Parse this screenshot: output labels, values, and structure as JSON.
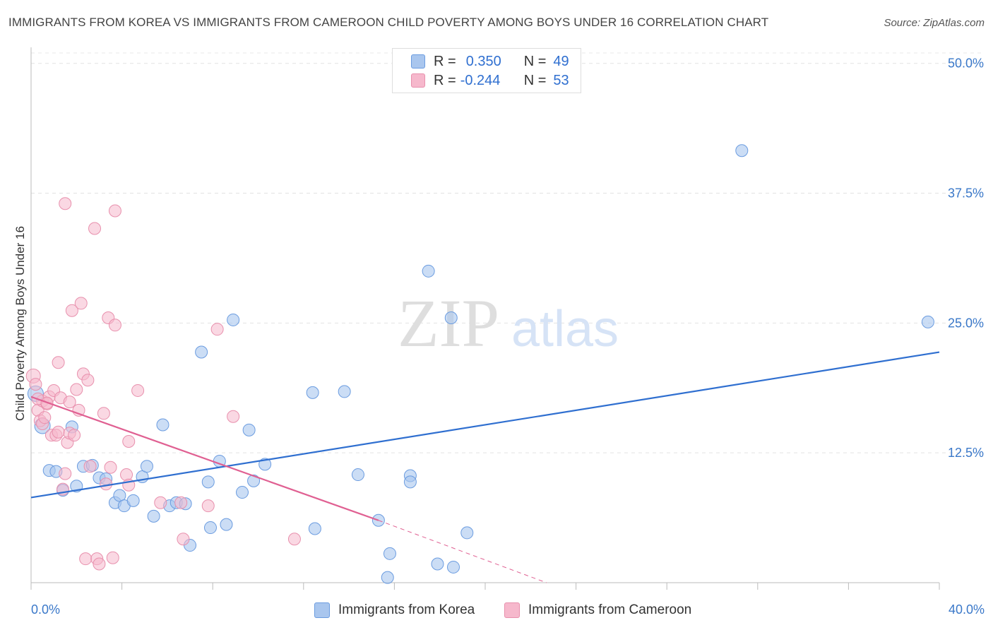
{
  "title": "IMMIGRANTS FROM KOREA VS IMMIGRANTS FROM CAMEROON CHILD POVERTY AMONG BOYS UNDER 16 CORRELATION CHART",
  "source": "Source: ZipAtlas.com",
  "watermark": {
    "zip": "ZIP",
    "atlas": "atlas"
  },
  "colors": {
    "korea_fill": "#a9c6ee",
    "korea_stroke": "#6b9ce0",
    "korea_line": "#2f6fd0",
    "cameroon_fill": "#f6b8cc",
    "cameroon_stroke": "#e890ad",
    "cameroon_line": "#e06092",
    "axis_text": "#3a78c9"
  },
  "legend": {
    "rows": [
      {
        "r_label": "R =",
        "r_value": "0.350",
        "n_label": "N =",
        "n_value": "49"
      },
      {
        "r_label": "R =",
        "r_value": "-0.244",
        "n_label": "N =",
        "n_value": "53"
      }
    ]
  },
  "bottom_legend": {
    "korea": "Immigrants from Korea",
    "cameroon": "Immigrants from Cameroon"
  },
  "chart_data": {
    "type": "scatter",
    "title": "IMMIGRANTS FROM KOREA VS IMMIGRANTS FROM CAMEROON CHILD POVERTY AMONG BOYS UNDER 16 CORRELATION CHART",
    "xlabel": "",
    "ylabel": "Child Poverty Among Boys Under 16",
    "xlim": [
      0,
      40
    ],
    "ylim": [
      0,
      51
    ],
    "x_tick_labels": [
      "0.0%",
      "40.0%"
    ],
    "y_ticks": [
      12.5,
      25.0,
      37.5,
      50.0
    ],
    "y_tick_labels": [
      "12.5%",
      "25.0%",
      "37.5%",
      "50.0%"
    ],
    "series": [
      {
        "name": "Immigrants from Korea",
        "r": 0.35,
        "n": 49,
        "trend": {
          "x": [
            0,
            40
          ],
          "y": [
            8.2,
            22.2
          ]
        },
        "points": [
          [
            0.2,
            18.2
          ],
          [
            0.5,
            15.1
          ],
          [
            0.8,
            10.8
          ],
          [
            1.1,
            10.7
          ],
          [
            1.4,
            8.9
          ],
          [
            1.8,
            15.0
          ],
          [
            2.0,
            9.3
          ],
          [
            2.3,
            11.2
          ],
          [
            2.7,
            11.3
          ],
          [
            3.0,
            10.1
          ],
          [
            3.3,
            10.0
          ],
          [
            3.7,
            7.7
          ],
          [
            3.9,
            8.4
          ],
          [
            4.1,
            7.4
          ],
          [
            4.5,
            7.9
          ],
          [
            4.9,
            10.2
          ],
          [
            5.1,
            11.2
          ],
          [
            5.4,
            6.4
          ],
          [
            5.8,
            15.2
          ],
          [
            6.1,
            7.4
          ],
          [
            6.4,
            7.7
          ],
          [
            6.8,
            7.6
          ],
          [
            7.0,
            3.6
          ],
          [
            7.5,
            22.2
          ],
          [
            7.8,
            9.7
          ],
          [
            7.9,
            5.3
          ],
          [
            8.3,
            11.7
          ],
          [
            8.6,
            5.6
          ],
          [
            8.9,
            25.3
          ],
          [
            9.3,
            8.7
          ],
          [
            9.6,
            14.7
          ],
          [
            9.8,
            9.8
          ],
          [
            10.3,
            11.4
          ],
          [
            12.4,
            18.3
          ],
          [
            12.5,
            5.2
          ],
          [
            13.8,
            18.4
          ],
          [
            14.4,
            10.4
          ],
          [
            15.3,
            6.0
          ],
          [
            15.7,
            0.5
          ],
          [
            15.8,
            2.8
          ],
          [
            16.7,
            10.3
          ],
          [
            16.7,
            9.7
          ],
          [
            17.5,
            30.0
          ],
          [
            17.9,
            1.8
          ],
          [
            18.5,
            25.5
          ],
          [
            18.6,
            1.5
          ],
          [
            19.2,
            4.8
          ],
          [
            31.3,
            41.6
          ],
          [
            39.5,
            25.1
          ]
        ]
      },
      {
        "name": "Immigrants from Cameroon",
        "r": -0.244,
        "n": 53,
        "trend": {
          "x": [
            0,
            15.3
          ],
          "y": [
            17.9,
            6.0
          ]
        },
        "trend_dashed": {
          "x": [
            15.3,
            22.7
          ],
          "y": [
            6.0,
            0.0
          ]
        },
        "points": [
          [
            0.1,
            19.9
          ],
          [
            0.2,
            19.1
          ],
          [
            0.3,
            16.6
          ],
          [
            0.4,
            15.6
          ],
          [
            0.5,
            17.5
          ],
          [
            0.5,
            15.3
          ],
          [
            0.6,
            15.9
          ],
          [
            0.7,
            17.2
          ],
          [
            0.8,
            17.9
          ],
          [
            0.9,
            14.2
          ],
          [
            1.0,
            18.5
          ],
          [
            1.1,
            14.2
          ],
          [
            1.2,
            14.5
          ],
          [
            1.2,
            21.2
          ],
          [
            1.3,
            17.8
          ],
          [
            1.4,
            9.0
          ],
          [
            1.5,
            36.5
          ],
          [
            1.5,
            10.5
          ],
          [
            1.6,
            13.5
          ],
          [
            1.7,
            17.4
          ],
          [
            1.7,
            14.4
          ],
          [
            1.8,
            26.2
          ],
          [
            1.9,
            14.2
          ],
          [
            2.0,
            18.6
          ],
          [
            2.1,
            16.6
          ],
          [
            2.2,
            26.9
          ],
          [
            2.3,
            20.1
          ],
          [
            2.4,
            2.3
          ],
          [
            2.5,
            19.5
          ],
          [
            2.6,
            11.2
          ],
          [
            2.8,
            34.1
          ],
          [
            2.9,
            2.3
          ],
          [
            3.0,
            1.8
          ],
          [
            3.2,
            16.3
          ],
          [
            3.3,
            9.5
          ],
          [
            3.4,
            25.5
          ],
          [
            3.5,
            11.1
          ],
          [
            3.6,
            2.4
          ],
          [
            3.7,
            24.8
          ],
          [
            3.7,
            35.8
          ],
          [
            4.2,
            10.4
          ],
          [
            4.3,
            13.6
          ],
          [
            4.3,
            9.4
          ],
          [
            4.7,
            18.5
          ],
          [
            5.7,
            7.7
          ],
          [
            6.6,
            7.7
          ],
          [
            6.7,
            4.2
          ],
          [
            7.8,
            7.4
          ],
          [
            8.2,
            24.4
          ],
          [
            8.9,
            16.0
          ],
          [
            11.6,
            4.2
          ],
          [
            0.3,
            17.7
          ],
          [
            0.7,
            17.3
          ]
        ]
      }
    ]
  }
}
